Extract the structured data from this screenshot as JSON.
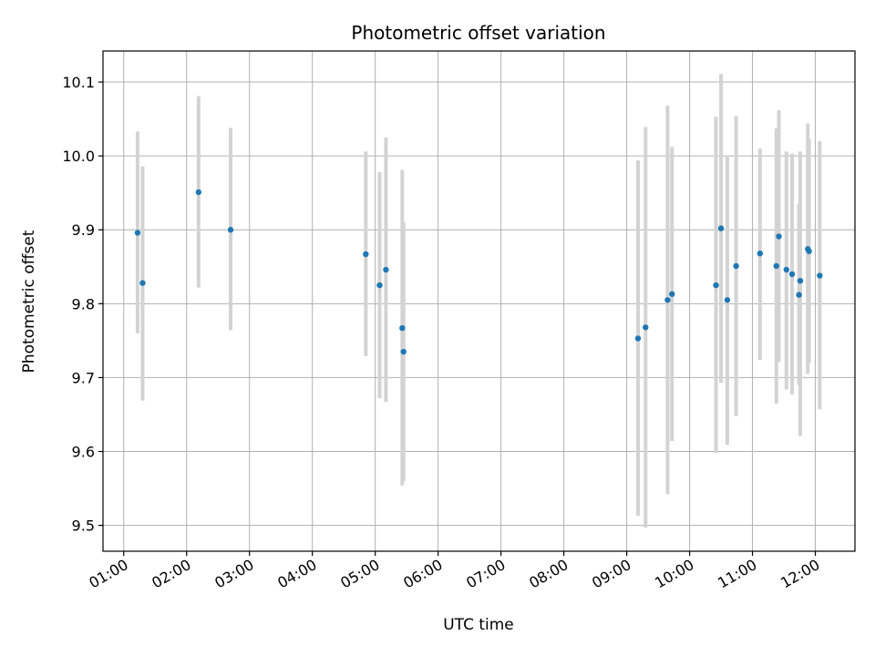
{
  "chart_data": {
    "type": "scatter",
    "title": "Photometric offset variation",
    "xlabel": "UTC time",
    "ylabel": "Photometric offset",
    "x_unit": "hours UTC",
    "xlim": [
      0.67,
      12.63
    ],
    "ylim": [
      9.465,
      10.142
    ],
    "x_ticks": [
      {
        "value": 1,
        "label": "01:00"
      },
      {
        "value": 2,
        "label": "02:00"
      },
      {
        "value": 3,
        "label": "03:00"
      },
      {
        "value": 4,
        "label": "04:00"
      },
      {
        "value": 5,
        "label": "05:00"
      },
      {
        "value": 6,
        "label": "06:00"
      },
      {
        "value": 7,
        "label": "07:00"
      },
      {
        "value": 8,
        "label": "08:00"
      },
      {
        "value": 9,
        "label": "09:00"
      },
      {
        "value": 10,
        "label": "10:00"
      },
      {
        "value": 11,
        "label": "11:00"
      },
      {
        "value": 12,
        "label": "12:00"
      }
    ],
    "y_ticks": [
      {
        "value": 9.5,
        "label": "9.5"
      },
      {
        "value": 9.6,
        "label": "9.6"
      },
      {
        "value": 9.7,
        "label": "9.7"
      },
      {
        "value": 9.8,
        "label": "9.8"
      },
      {
        "value": 9.9,
        "label": "9.9"
      },
      {
        "value": 10.0,
        "label": "10.0"
      },
      {
        "value": 10.1,
        "label": "10.1"
      }
    ],
    "grid": true,
    "colors": {
      "point": "#1f77b4",
      "errorbar": "#d3d3d3",
      "grid": "#b0b0b0"
    },
    "points": [
      {
        "x": 1.22,
        "y": 9.896,
        "ylow": 9.76,
        "yhigh": 10.033
      },
      {
        "x": 1.3,
        "y": 9.828,
        "ylow": 9.669,
        "yhigh": 9.986
      },
      {
        "x": 2.19,
        "y": 9.951,
        "ylow": 9.822,
        "yhigh": 10.081
      },
      {
        "x": 2.7,
        "y": 9.9,
        "ylow": 9.764,
        "yhigh": 10.038
      },
      {
        "x": 4.85,
        "y": 9.867,
        "ylow": 9.729,
        "yhigh": 10.006
      },
      {
        "x": 5.07,
        "y": 9.825,
        "ylow": 9.672,
        "yhigh": 9.978
      },
      {
        "x": 5.17,
        "y": 9.846,
        "ylow": 9.667,
        "yhigh": 10.025
      },
      {
        "x": 5.43,
        "y": 9.767,
        "ylow": 9.554,
        "yhigh": 9.981
      },
      {
        "x": 5.45,
        "y": 9.735,
        "ylow": 9.56,
        "yhigh": 9.91
      },
      {
        "x": 9.18,
        "y": 9.753,
        "ylow": 9.513,
        "yhigh": 9.994
      },
      {
        "x": 9.3,
        "y": 9.768,
        "ylow": 9.497,
        "yhigh": 10.039
      },
      {
        "x": 9.65,
        "y": 9.805,
        "ylow": 9.542,
        "yhigh": 10.068
      },
      {
        "x": 9.72,
        "y": 9.813,
        "ylow": 9.614,
        "yhigh": 10.012
      },
      {
        "x": 10.42,
        "y": 9.825,
        "ylow": 9.598,
        "yhigh": 10.053
      },
      {
        "x": 10.5,
        "y": 9.902,
        "ylow": 9.693,
        "yhigh": 10.111
      },
      {
        "x": 10.6,
        "y": 9.805,
        "ylow": 9.609,
        "yhigh": 10.001
      },
      {
        "x": 10.74,
        "y": 9.851,
        "ylow": 9.648,
        "yhigh": 10.054
      },
      {
        "x": 11.12,
        "y": 9.868,
        "ylow": 9.724,
        "yhigh": 10.01
      },
      {
        "x": 11.38,
        "y": 9.851,
        "ylow": 9.665,
        "yhigh": 10.037
      },
      {
        "x": 11.42,
        "y": 9.891,
        "ylow": 9.721,
        "yhigh": 10.062
      },
      {
        "x": 11.54,
        "y": 9.846,
        "ylow": 9.684,
        "yhigh": 10.006
      },
      {
        "x": 11.63,
        "y": 9.84,
        "ylow": 9.677,
        "yhigh": 10.003
      },
      {
        "x": 11.74,
        "y": 9.812,
        "ylow": 9.69,
        "yhigh": 9.935
      },
      {
        "x": 11.76,
        "y": 9.831,
        "ylow": 9.621,
        "yhigh": 10.006
      },
      {
        "x": 11.88,
        "y": 9.874,
        "ylow": 9.705,
        "yhigh": 10.044
      },
      {
        "x": 11.9,
        "y": 9.871,
        "ylow": 9.72,
        "yhigh": 10.023
      },
      {
        "x": 12.07,
        "y": 9.838,
        "ylow": 9.657,
        "yhigh": 10.02
      }
    ]
  }
}
